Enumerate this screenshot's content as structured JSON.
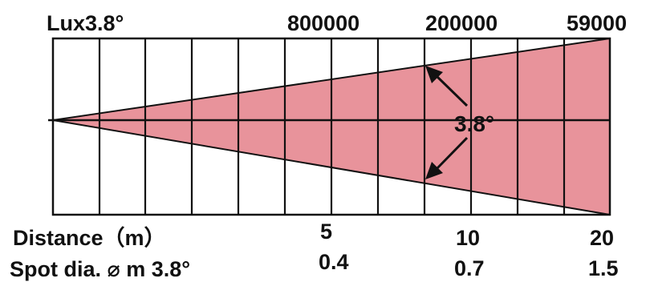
{
  "header": {
    "lux_label": "Lux3.8°",
    "lux_values": [
      "800000",
      "200000",
      "59000"
    ]
  },
  "beam": {
    "angle_label": "3.8°",
    "fill_color": "#e8939b",
    "line_color": "#111111"
  },
  "rows": {
    "distance_label": "Distance（m）",
    "distance_values": [
      "5",
      "10",
      "20"
    ],
    "spot_label": "Spot dia. ⌀ m 3.8°",
    "spot_values": [
      "0.4",
      "0.7",
      "1.5"
    ]
  }
}
